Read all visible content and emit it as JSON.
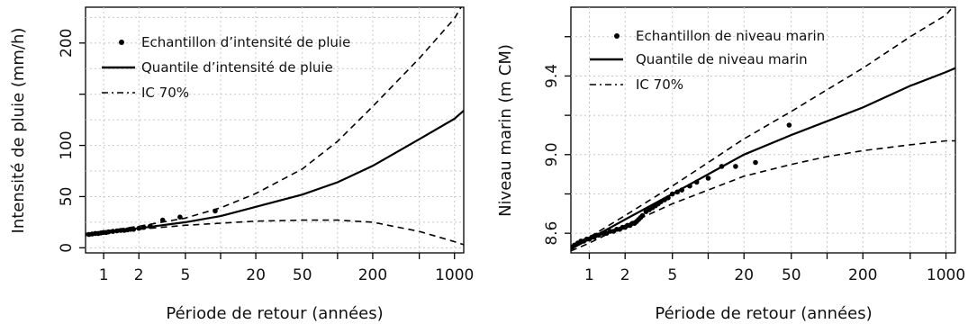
{
  "chart_data": [
    {
      "type": "scatter",
      "title": "",
      "xlabel": "Période de retour (années)",
      "ylabel": "Intensité de pluie (mm/h)",
      "x_scale": "log",
      "xlim": [
        0.7,
        1200
      ],
      "ylim": [
        -5,
        235
      ],
      "grid": true,
      "x_ticks": [
        {
          "value": 1,
          "label": "1"
        },
        {
          "value": 2,
          "label": "2"
        },
        {
          "value": 5,
          "label": "5"
        },
        {
          "value": 20,
          "label": "20"
        },
        {
          "value": 50,
          "label": "50"
        },
        {
          "value": 200,
          "label": "200"
        },
        {
          "value": 1000,
          "label": "1000"
        }
      ],
      "y_ticks": [
        {
          "value": 0,
          "label": "0"
        },
        {
          "value": 50,
          "label": "50"
        },
        {
          "value": 100,
          "label": "100"
        },
        {
          "value": 200,
          "label": "200"
        }
      ],
      "legend_position": "top-left",
      "legend": [
        {
          "label": "Echantillon d’intensité de pluie",
          "style": "point"
        },
        {
          "label": "Quantile d’intensité de pluie",
          "style": "solid"
        },
        {
          "label": "IC 70%",
          "style": "dashdot"
        }
      ],
      "series": [
        {
          "name": "Echantillon d’intensité de pluie",
          "kind": "points",
          "points": [
            [
              0.75,
              13
            ],
            [
              0.8,
              13.5
            ],
            [
              0.85,
              14
            ],
            [
              0.9,
              14
            ],
            [
              0.95,
              14.5
            ],
            [
              1.0,
              15
            ],
            [
              1.05,
              15
            ],
            [
              1.1,
              15.5
            ],
            [
              1.2,
              16
            ],
            [
              1.3,
              16.5
            ],
            [
              1.4,
              17
            ],
            [
              1.5,
              17
            ],
            [
              1.6,
              17.5
            ],
            [
              1.7,
              18
            ],
            [
              1.8,
              18
            ],
            [
              2.0,
              19
            ],
            [
              2.2,
              20
            ],
            [
              2.5,
              21
            ],
            [
              3.2,
              27
            ],
            [
              4.5,
              30
            ],
            [
              9.0,
              36
            ]
          ]
        },
        {
          "name": "Quantile d’intensité de pluie",
          "kind": "line",
          "dash": "solid",
          "points": [
            [
              0.7,
              13
            ],
            [
              1,
              15
            ],
            [
              2,
              19
            ],
            [
              5,
              25
            ],
            [
              10,
              31
            ],
            [
              20,
              40
            ],
            [
              50,
              52
            ],
            [
              100,
              64
            ],
            [
              200,
              80
            ],
            [
              500,
              106
            ],
            [
              1000,
              126
            ],
            [
              1200,
              134
            ]
          ]
        },
        {
          "name": "IC 70% (upper)",
          "kind": "line",
          "dash": "dashed",
          "points": [
            [
              0.7,
              14
            ],
            [
              1,
              16
            ],
            [
              2,
              21
            ],
            [
              5,
              29
            ],
            [
              10,
              39
            ],
            [
              20,
              53
            ],
            [
              50,
              77
            ],
            [
              100,
              104
            ],
            [
              200,
              138
            ],
            [
              500,
              185
            ],
            [
              1000,
              224
            ],
            [
              1150,
              236
            ]
          ]
        },
        {
          "name": "IC 70% (lower)",
          "kind": "line",
          "dash": "dashed",
          "points": [
            [
              0.7,
              12
            ],
            [
              1,
              14
            ],
            [
              2,
              18
            ],
            [
              5,
              22
            ],
            [
              10,
              24
            ],
            [
              20,
              26
            ],
            [
              50,
              27
            ],
            [
              100,
              27
            ],
            [
              200,
              25
            ],
            [
              500,
              16
            ],
            [
              1000,
              6
            ],
            [
              1200,
              3
            ]
          ]
        }
      ]
    },
    {
      "type": "scatter",
      "title": "",
      "xlabel": "Période de retour (années)",
      "ylabel": "Niveau marin (m CM)",
      "x_scale": "log",
      "xlim": [
        0.7,
        1200
      ],
      "ylim": [
        8.5,
        9.75
      ],
      "grid": true,
      "x_ticks": [
        {
          "value": 1,
          "label": "1"
        },
        {
          "value": 2,
          "label": "2"
        },
        {
          "value": 5,
          "label": "5"
        },
        {
          "value": 20,
          "label": "20"
        },
        {
          "value": 50,
          "label": "50"
        },
        {
          "value": 200,
          "label": "200"
        },
        {
          "value": 1000,
          "label": "1000"
        }
      ],
      "y_ticks": [
        {
          "value": 8.6,
          "label": "8.6"
        },
        {
          "value": 9.0,
          "label": "9.0"
        },
        {
          "value": 9.4,
          "label": "9.4"
        }
      ],
      "legend_position": "top-left",
      "legend": [
        {
          "label": "Echantillon de niveau marin",
          "style": "point"
        },
        {
          "label": "Quantile de niveau marin",
          "style": "solid"
        },
        {
          "label": "IC 70%",
          "style": "dashdot"
        }
      ],
      "series": [
        {
          "name": "Echantillon de niveau marin",
          "kind": "points",
          "points": [
            [
              0.72,
              8.53
            ],
            [
              0.75,
              8.54
            ],
            [
              0.8,
              8.55
            ],
            [
              0.85,
              8.56
            ],
            [
              0.9,
              8.56
            ],
            [
              0.95,
              8.57
            ],
            [
              1.0,
              8.57
            ],
            [
              1.05,
              8.58
            ],
            [
              1.1,
              8.58
            ],
            [
              1.15,
              8.59
            ],
            [
              1.2,
              8.59
            ],
            [
              1.3,
              8.6
            ],
            [
              1.4,
              8.6
            ],
            [
              1.5,
              8.61
            ],
            [
              1.6,
              8.61
            ],
            [
              1.7,
              8.62
            ],
            [
              1.8,
              8.62
            ],
            [
              1.9,
              8.63
            ],
            [
              2.0,
              8.63
            ],
            [
              2.1,
              8.64
            ],
            [
              2.2,
              8.64
            ],
            [
              2.3,
              8.65
            ],
            [
              2.4,
              8.65
            ],
            [
              2.5,
              8.66
            ],
            [
              2.6,
              8.67
            ],
            [
              2.7,
              8.68
            ],
            [
              2.8,
              8.69
            ],
            [
              3.0,
              8.71
            ],
            [
              3.2,
              8.72
            ],
            [
              3.4,
              8.73
            ],
            [
              3.6,
              8.74
            ],
            [
              3.8,
              8.75
            ],
            [
              4.0,
              8.76
            ],
            [
              4.3,
              8.77
            ],
            [
              4.6,
              8.78
            ],
            [
              5.0,
              8.8
            ],
            [
              5.5,
              8.81
            ],
            [
              6.0,
              8.82
            ],
            [
              7.0,
              8.84
            ],
            [
              8.0,
              8.86
            ],
            [
              10.0,
              8.88
            ],
            [
              13.0,
              8.94
            ],
            [
              17.0,
              8.94
            ],
            [
              25.0,
              8.96
            ],
            [
              48.0,
              9.15
            ]
          ]
        },
        {
          "name": "Quantile de niveau marin",
          "kind": "line",
          "dash": "solid",
          "points": [
            [
              0.7,
              8.52
            ],
            [
              1,
              8.57
            ],
            [
              2,
              8.67
            ],
            [
              5,
              8.8
            ],
            [
              10,
              8.9
            ],
            [
              20,
              9.0
            ],
            [
              50,
              9.1
            ],
            [
              100,
              9.17
            ],
            [
              200,
              9.24
            ],
            [
              500,
              9.35
            ],
            [
              1000,
              9.42
            ],
            [
              1200,
              9.44
            ]
          ]
        },
        {
          "name": "IC 70% (upper)",
          "kind": "line",
          "dash": "dashed",
          "points": [
            [
              0.7,
              8.53
            ],
            [
              1,
              8.58
            ],
            [
              2,
              8.69
            ],
            [
              5,
              8.84
            ],
            [
              10,
              8.96
            ],
            [
              20,
              9.08
            ],
            [
              50,
              9.22
            ],
            [
              100,
              9.33
            ],
            [
              200,
              9.44
            ],
            [
              500,
              9.6
            ],
            [
              1000,
              9.71
            ],
            [
              1100,
              9.74
            ]
          ]
        },
        {
          "name": "IC 70% (lower)",
          "kind": "line",
          "dash": "dashed",
          "points": [
            [
              0.7,
              8.51
            ],
            [
              1,
              8.55
            ],
            [
              2,
              8.64
            ],
            [
              5,
              8.75
            ],
            [
              10,
              8.82
            ],
            [
              20,
              8.89
            ],
            [
              50,
              8.95
            ],
            [
              100,
              8.99
            ],
            [
              200,
              9.02
            ],
            [
              500,
              9.05
            ],
            [
              1000,
              9.07
            ],
            [
              1200,
              9.07
            ]
          ]
        }
      ]
    }
  ]
}
